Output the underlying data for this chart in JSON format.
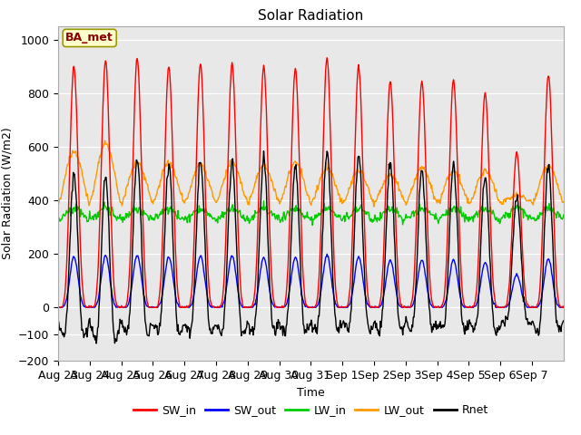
{
  "title": "Solar Radiation",
  "xlabel": "Time",
  "ylabel": "Solar Radiation (W/m2)",
  "ylim": [
    -200,
    1050
  ],
  "bg_color": "#e8e8e8",
  "annotation_text": "BA_met",
  "annotation_bg": "#ffffcc",
  "annotation_border": "#999900",
  "annotation_text_color": "#880000",
  "series": {
    "SW_in": {
      "color": "#ff0000",
      "lw": 1.0
    },
    "SW_out": {
      "color": "#0000ff",
      "lw": 1.0
    },
    "LW_in": {
      "color": "#00cc00",
      "lw": 1.0
    },
    "LW_out": {
      "color": "#ff9900",
      "lw": 1.0
    },
    "Rnet": {
      "color": "#000000",
      "lw": 1.0
    }
  },
  "tick_labels": [
    "Aug 23",
    "Aug 24",
    "Aug 25",
    "Aug 26",
    "Aug 27",
    "Aug 28",
    "Aug 29",
    "Aug 30",
    "Aug 31",
    "Sep 1",
    "Sep 2",
    "Sep 3",
    "Sep 4",
    "Sep 5",
    "Sep 6",
    "Sep 7"
  ],
  "yticks": [
    -200,
    -100,
    0,
    200,
    400,
    600,
    800,
    1000
  ],
  "sw_in_peaks": [
    900,
    920,
    930,
    900,
    910,
    910,
    900,
    890,
    930,
    900,
    845,
    845,
    850,
    800,
    580,
    870
  ],
  "lw_out_peaks": [
    580,
    610,
    540,
    540,
    530,
    540,
    530,
    540,
    520,
    510,
    495,
    520,
    510,
    510,
    420,
    530
  ],
  "lw_in_base": 330,
  "lw_out_base": 390,
  "night_rnet": -75
}
